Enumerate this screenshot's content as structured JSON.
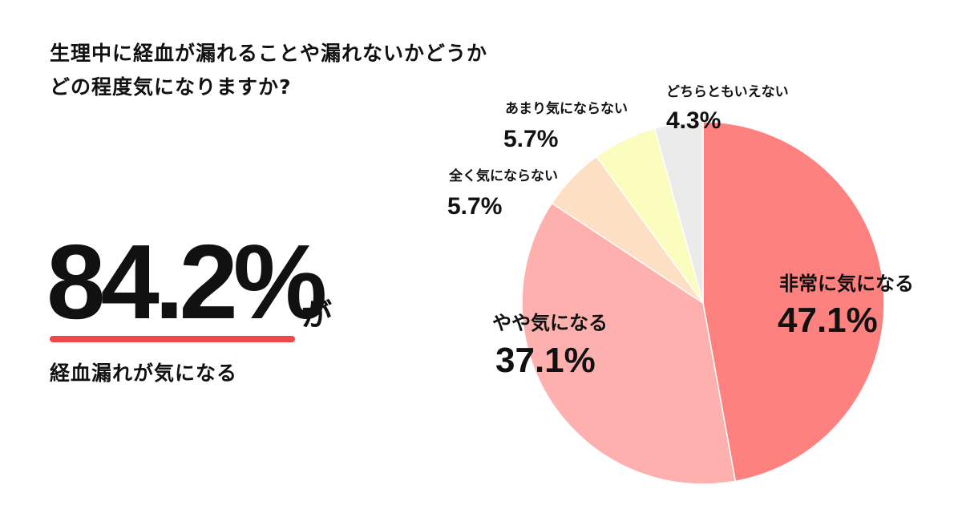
{
  "question": {
    "line1": "生理中に経血が漏れることや漏れないかどうか",
    "line2": "どの程度気になりますか?"
  },
  "headline": {
    "value": "84.2%",
    "suffix": "が",
    "caption": "経血漏れが気になる",
    "underline_color": "#f0474a"
  },
  "chart_data": {
    "type": "pie",
    "title": "生理中に経血が漏れることや漏れないかどうか どの程度気になりますか?",
    "start_angle": "12 o'clock, clockwise",
    "slices": [
      {
        "label": "非常に気になる",
        "value": 47.1,
        "display": "47.1%",
        "color": "#fd817e"
      },
      {
        "label": "やや気になる",
        "value": 37.1,
        "display": "37.1%",
        "color": "#fdb0ad"
      },
      {
        "label": "全く気にならない",
        "value": 5.7,
        "display": "5.7%",
        "color": "#fde0c3"
      },
      {
        "label": "あまり気にならない",
        "value": 5.7,
        "display": "5.7%",
        "color": "#fafdbe"
      },
      {
        "label": "どちらともいえない",
        "value": 4.3,
        "display": "4.3%",
        "color": "#ebebeb"
      }
    ]
  }
}
